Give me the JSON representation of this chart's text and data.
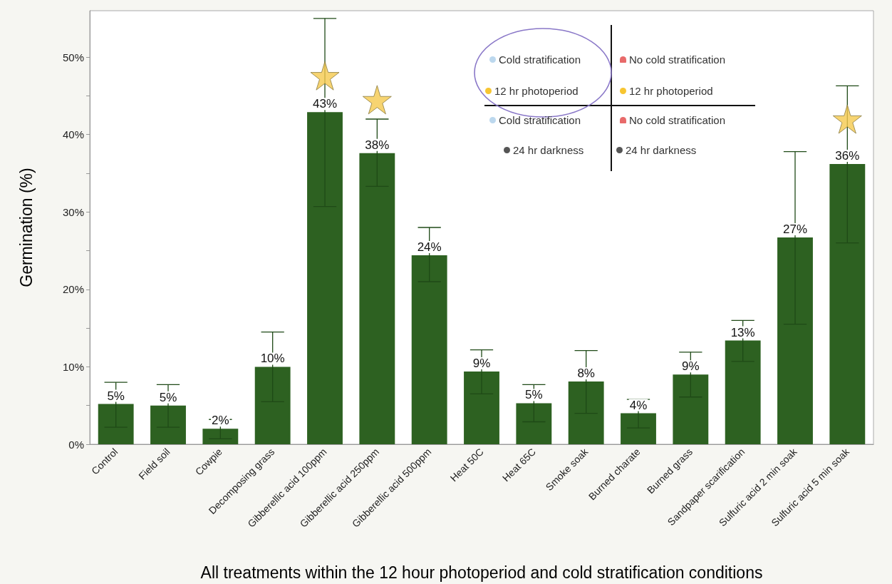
{
  "chart_data": {
    "type": "bar",
    "xlabel": "All treatments within the 12 hour photoperiod and cold stratification conditions",
    "ylabel": "Germination (%)",
    "categories": [
      "Control",
      "Field soil",
      "Cowpie",
      "Decomposing grass",
      "Gibberellic acid 100ppm",
      "Gibberellic acid 250ppm",
      "Gibberellic acid 500ppm",
      "Heat 50C",
      "Heat 65C",
      "Smoke soak",
      "Burned charate",
      "Burned grass",
      "Sandpaper scarification",
      "Sulfuric acid 2 min soak",
      "Sulfuric acid 5 min soak"
    ],
    "series": [
      {
        "type": "bar",
        "color": "#2d6121",
        "values": [
          5.2,
          5.0,
          2.0,
          10.0,
          42.9,
          37.6,
          24.4,
          9.4,
          5.3,
          8.1,
          4.0,
          9.0,
          13.4,
          26.7,
          36.2
        ],
        "errors": [
          [
            2.2,
            8.0
          ],
          [
            2.2,
            7.7
          ],
          [
            0.7,
            3.2
          ],
          [
            5.5,
            14.5
          ],
          [
            30.7,
            55.0
          ],
          [
            33.3,
            42.0
          ],
          [
            21.0,
            28.0
          ],
          [
            6.5,
            12.2
          ],
          [
            2.9,
            7.7
          ],
          [
            4.0,
            12.1
          ],
          [
            2.1,
            5.8
          ],
          [
            6.1,
            11.9
          ],
          [
            10.7,
            16.0
          ],
          [
            15.5,
            37.8
          ],
          [
            26.0,
            46.3
          ]
        ],
        "value_labels": [
          "5%",
          "5%",
          "2%",
          "10%",
          "43%",
          "38%",
          "24%",
          "9%",
          "5%",
          "8%",
          "4%",
          "9%",
          "13%",
          "27%",
          "36%"
        ]
      },
      {
        "type": "scatter",
        "color": "#f5c94e",
        "marker": "star",
        "x": [
          "Gibberellic acid 100ppm",
          "Gibberellic acid 250ppm",
          "Sulfuric acid 5 min soak"
        ],
        "values": [
          47.6,
          44.5,
          42.0
        ]
      }
    ],
    "ylim": [
      0,
      56
    ],
    "yticks": [
      {
        "value": 0,
        "label": "0%"
      },
      {
        "value": 5,
        "label": null
      },
      {
        "value": 10,
        "label": "10%"
      },
      {
        "value": 15,
        "label": null
      },
      {
        "value": 20,
        "label": "20%"
      },
      {
        "value": 25,
        "label": null
      },
      {
        "value": 30,
        "label": "30%"
      },
      {
        "value": 35,
        "label": null
      },
      {
        "value": 40,
        "label": "40%"
      },
      {
        "value": 45,
        "label": null
      },
      {
        "value": 50,
        "label": "50%"
      }
    ],
    "grid": false,
    "annotations": [
      "Cold stratification",
      "No cold stratification",
      "12 hr photoperiod",
      "12 hr photoperiod",
      "Cold stratification",
      "No cold stratification",
      "24 hr darkness",
      "24 hr darkness"
    ]
  }
}
